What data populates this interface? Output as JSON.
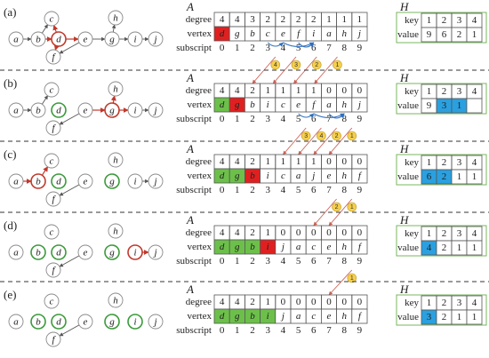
{
  "colors": {
    "current_cell": "#e02020",
    "processed_cell": "#6cc04a",
    "blue_cell": "#2aa0e0",
    "current_node": "#c0392b",
    "processed_node": "#3a9a3a"
  },
  "row_labels": {
    "degree": "degree",
    "vertex": "vertex",
    "subscript": "subscript",
    "key": "key",
    "value": "value"
  },
  "array_title": "A",
  "hash_title": "H",
  "subscripts": [
    "0",
    "1",
    "2",
    "3",
    "4",
    "5",
    "6",
    "7",
    "8",
    "9"
  ],
  "panels": [
    {
      "label": "(a)",
      "degree": [
        "4",
        "4",
        "3",
        "2",
        "2",
        "2",
        "2",
        "1",
        "1",
        "1"
      ],
      "vertex": [
        "d",
        "g",
        "b",
        "c",
        "e",
        "f",
        "i",
        "a",
        "h",
        "j"
      ],
      "vertex_colors": [
        "red",
        "",
        "",
        "",
        "",
        "",
        "",
        "",
        "",
        ""
      ],
      "hkey": [
        "1",
        "2",
        "3",
        "4"
      ],
      "hvalue": [
        "9",
        "6",
        "2",
        "1"
      ],
      "hcolors": [
        "",
        "",
        "",
        ""
      ],
      "nodes": {
        "red": [
          "d"
        ],
        "green": []
      },
      "badges": [
        "4",
        "3",
        "2",
        "1"
      ]
    },
    {
      "label": "(b)",
      "degree": [
        "4",
        "4",
        "2",
        "1",
        "1",
        "1",
        "1",
        "0",
        "0",
        "0"
      ],
      "vertex": [
        "d",
        "g",
        "b",
        "i",
        "c",
        "e",
        "f",
        "a",
        "h",
        "j"
      ],
      "vertex_colors": [
        "green",
        "red",
        "",
        "",
        "",
        "",
        "",
        "",
        "",
        ""
      ],
      "hkey": [
        "1",
        "2",
        "3",
        "4"
      ],
      "hvalue": [
        "9",
        "3",
        "1",
        ""
      ],
      "hcolors": [
        "",
        "blue",
        "blue",
        ""
      ],
      "nodes": {
        "red": [
          "g"
        ],
        "green": [
          "d"
        ]
      },
      "badges": [
        "3",
        "4",
        "2",
        "1"
      ]
    },
    {
      "label": "(c)",
      "degree": [
        "4",
        "4",
        "2",
        "1",
        "1",
        "1",
        "1",
        "0",
        "0",
        "0"
      ],
      "vertex": [
        "d",
        "g",
        "b",
        "i",
        "c",
        "a",
        "j",
        "e",
        "h",
        "f"
      ],
      "vertex_colors": [
        "green",
        "green",
        "red",
        "",
        "",
        "",
        "",
        "",
        "",
        ""
      ],
      "hkey": [
        "1",
        "2",
        "3",
        "4"
      ],
      "hvalue": [
        "6",
        "2",
        "1",
        "1"
      ],
      "hcolors": [
        "blue",
        "blue",
        "",
        ""
      ],
      "nodes": {
        "red": [
          "b"
        ],
        "green": [
          "d",
          "g"
        ]
      },
      "badges": [
        "2",
        "1"
      ]
    },
    {
      "label": "(d)",
      "degree": [
        "4",
        "4",
        "2",
        "1",
        "0",
        "0",
        "0",
        "0",
        "0",
        "0"
      ],
      "vertex": [
        "d",
        "g",
        "b",
        "i",
        "j",
        "a",
        "c",
        "e",
        "h",
        "f"
      ],
      "vertex_colors": [
        "green",
        "green",
        "green",
        "red",
        "",
        "",
        "",
        "",
        "",
        ""
      ],
      "hkey": [
        "1",
        "2",
        "3",
        "4"
      ],
      "hvalue": [
        "4",
        "2",
        "1",
        "1"
      ],
      "hcolors": [
        "blue",
        "",
        "",
        ""
      ],
      "nodes": {
        "red": [
          "i"
        ],
        "green": [
          "d",
          "g",
          "b"
        ]
      },
      "badges": [
        "1"
      ]
    },
    {
      "label": "(e)",
      "degree": [
        "4",
        "4",
        "2",
        "1",
        "0",
        "0",
        "0",
        "0",
        "0",
        "0"
      ],
      "vertex": [
        "d",
        "g",
        "b",
        "i",
        "j",
        "a",
        "c",
        "e",
        "h",
        "f"
      ],
      "vertex_colors": [
        "green",
        "green",
        "green",
        "green",
        "",
        "",
        "",
        "",
        "",
        ""
      ],
      "hkey": [
        "1",
        "2",
        "3",
        "4"
      ],
      "hvalue": [
        "3",
        "2",
        "1",
        "1"
      ],
      "hcolors": [
        "blue",
        "",
        "",
        ""
      ],
      "nodes": {
        "red": [],
        "green": [
          "d",
          "g",
          "b",
          "i"
        ]
      },
      "badges": []
    }
  ]
}
